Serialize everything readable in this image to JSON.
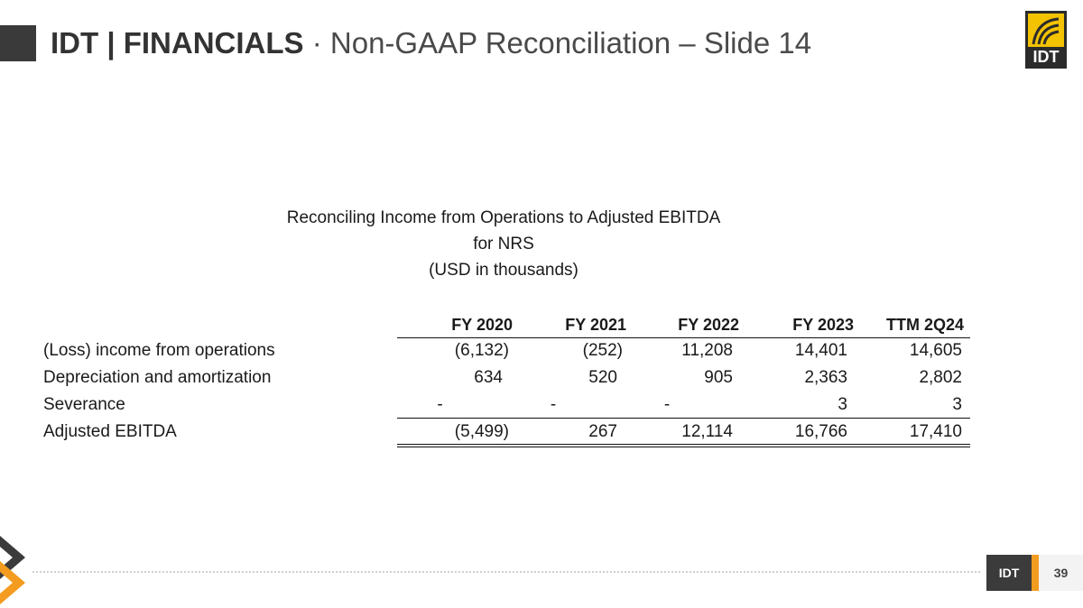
{
  "header": {
    "title_bold": "IDT | FINANCIALS",
    "title_light": "· Non-GAAP Reconciliation – Slide 14",
    "logo_text": "IDT"
  },
  "table_heading": {
    "line1": "Reconciling Income from Operations to Adjusted EBITDA",
    "line2": "for NRS",
    "line3": "(USD in thousands)"
  },
  "table": {
    "columns": [
      "FY 2020",
      "FY 2021",
      "FY 2022",
      "FY 2023",
      "TTM 2Q24"
    ],
    "rows": [
      {
        "label": "(Loss) income from operations",
        "values": [
          "(6,132)",
          "(252)",
          "11,208",
          "14,401",
          "14,605"
        ]
      },
      {
        "label": "Depreciation and amortization",
        "values": [
          "634",
          "520",
          "905",
          "2,363",
          "2,802"
        ]
      },
      {
        "label": "Severance",
        "values": [
          "-",
          "-",
          "-",
          "3",
          "3"
        ]
      },
      {
        "label": "Adjusted EBITDA",
        "values": [
          "(5,499)",
          "267",
          "12,114",
          "16,766",
          "17,410"
        ]
      }
    ]
  },
  "footer": {
    "tag": "IDT",
    "page_number": "39"
  },
  "colors": {
    "accent_orange": "#f39c1f",
    "logo_gold": "#f3c200",
    "dark_gray": "#3b3b3b"
  }
}
